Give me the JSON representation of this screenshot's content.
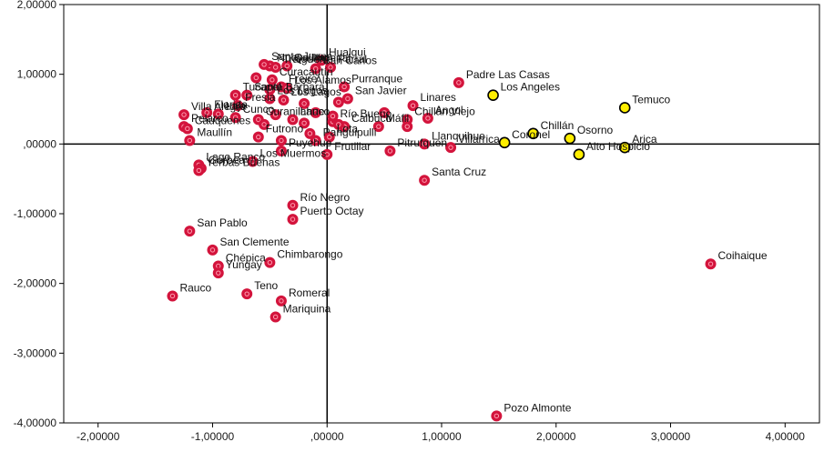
{
  "colors": {
    "red_fill": "#d3143c",
    "red_ring": "#ff9db0",
    "yellow_fill": "#ffee00",
    "yellow_stroke": "#000000",
    "axis": "#000000",
    "frame": "#000000"
  },
  "chart_data": {
    "type": "scatter",
    "xlim": [
      -2.3,
      4.3
    ],
    "ylim": [
      -4.0,
      2.0
    ],
    "x_ticks": [
      {
        "v": -2,
        "label": "-2,00000"
      },
      {
        "v": -1,
        "label": "-1,00000"
      },
      {
        "v": 0,
        "label": ",00000"
      },
      {
        "v": 1,
        "label": "1,00000"
      },
      {
        "v": 2,
        "label": "2,00000"
      },
      {
        "v": 3,
        "label": "3,00000"
      },
      {
        "v": 4,
        "label": "4,00000"
      }
    ],
    "y_ticks": [
      {
        "v": 2,
        "label": "2,00000"
      },
      {
        "v": 1,
        "label": "1,00000"
      },
      {
        "v": 0,
        "label": ",00000"
      },
      {
        "v": -1,
        "label": "-1,00000"
      },
      {
        "v": -2,
        "label": "-2,00000"
      },
      {
        "v": -3,
        "label": "-3,00000"
      },
      {
        "v": -4,
        "label": "-4,00000"
      }
    ],
    "series": [
      {
        "marker": "red",
        "points": [
          {
            "x": -0.5,
            "y": 1.12,
            "label": "Nueva Imperial"
          },
          {
            "x": -0.45,
            "y": 1.1,
            "label": "Traiguén"
          },
          {
            "x": -0.55,
            "y": 1.14,
            "label": "Santa Juana"
          },
          {
            "x": -0.35,
            "y": 1.12,
            "label": "Quillón"
          },
          {
            "x": -0.1,
            "y": 1.08,
            "label": "San Carlos"
          },
          {
            "x": -0.05,
            "y": 1.2,
            "label": "Hualqui"
          },
          {
            "x": 0.03,
            "y": 1.1,
            "label": "Parral"
          },
          {
            "x": -0.4,
            "y": 0.82,
            "label": "Freire"
          },
          {
            "x": -0.35,
            "y": 0.8,
            "label": "Los Álamos"
          },
          {
            "x": -0.48,
            "y": 0.92,
            "label": "Curacautín"
          },
          {
            "x": 0.15,
            "y": 0.82,
            "label": "Purranque"
          },
          {
            "x": 0.18,
            "y": 0.65,
            "label": "San Javier"
          },
          {
            "x": -1.25,
            "y": 0.42,
            "label": "Villa Alegre"
          },
          {
            "x": -0.8,
            "y": 0.7,
            "label": "Tucapel"
          },
          {
            "x": -0.7,
            "y": 0.7,
            "label": "Santa Bárbara"
          },
          {
            "x": -0.5,
            "y": 0.65,
            "label": "Los Lagos"
          },
          {
            "x": -1.05,
            "y": 0.45,
            "label": "Florida"
          },
          {
            "x": -0.95,
            "y": 0.43,
            "label": "Laja"
          },
          {
            "x": -0.78,
            "y": 0.55,
            "label": "Fresia"
          },
          {
            "x": -0.38,
            "y": 0.63,
            "label": "Los Lagos"
          },
          {
            "x": 1.15,
            "y": 0.88,
            "label": "Padre Las Casas"
          },
          {
            "x": 0.75,
            "y": 0.55,
            "label": "Linares"
          },
          {
            "x": 0.88,
            "y": 0.37,
            "label": "Angol"
          },
          {
            "x": 0.05,
            "y": 0.32,
            "label": "Río Bueno"
          },
          {
            "x": -1.25,
            "y": 0.25,
            "label": "Pelarco"
          },
          {
            "x": -1.22,
            "y": 0.22,
            "label": "Cauquenes"
          },
          {
            "x": -0.8,
            "y": 0.38,
            "label": "Cunco"
          },
          {
            "x": -1.2,
            "y": 0.05,
            "label": "Maullín"
          },
          {
            "x": -0.6,
            "y": 0.35,
            "label": "Curanilahue"
          },
          {
            "x": -0.3,
            "y": 0.35,
            "label": "Lanco"
          },
          {
            "x": -0.6,
            "y": 0.1,
            "label": "Futrono"
          },
          {
            "x": 0.02,
            "y": 0.1,
            "label": "Lota"
          },
          {
            "x": 0.15,
            "y": 0.25,
            "label": "Calbuco"
          },
          {
            "x": 0.45,
            "y": 0.25,
            "label": "Máfil"
          },
          {
            "x": 0.55,
            "y": -0.1,
            "label": "Pitrufquén"
          },
          {
            "x": 0.7,
            "y": 0.35,
            "label": "Chillán Viejo"
          },
          {
            "x": 0.85,
            "y": 0.0,
            "label": "Llanquihue"
          },
          {
            "x": 1.08,
            "y": -0.05,
            "label": "Villarrica"
          },
          {
            "x": -0.4,
            "y": -0.1,
            "label": "Puyehue"
          },
          {
            "x": -0.1,
            "y": 0.05,
            "label": "Panguipulli"
          },
          {
            "x": -0.65,
            "y": -0.25,
            "label": "Los Muermos"
          },
          {
            "x": 0.0,
            "y": -0.15,
            "label": "Frutillar"
          },
          {
            "x": -1.12,
            "y": -0.3,
            "label": "Lago Ranco"
          },
          {
            "x": -1.1,
            "y": -0.35,
            "label": "Gorbea"
          },
          {
            "x": -1.12,
            "y": -0.38,
            "label": "Yerbas Buenas"
          },
          {
            "x": 0.85,
            "y": -0.52,
            "label": "Santa Cruz"
          },
          {
            "x": -0.3,
            "y": -0.88,
            "label": "Río Negro"
          },
          {
            "x": -0.3,
            "y": -1.08,
            "label": "Puerto Octay"
          },
          {
            "x": -1.2,
            "y": -1.25,
            "label": "San Pablo"
          },
          {
            "x": -1.0,
            "y": -1.52,
            "label": "San Clemente"
          },
          {
            "x": -0.95,
            "y": -1.75,
            "label": "Chépica"
          },
          {
            "x": -0.5,
            "y": -1.7,
            "label": "Chimbarongo"
          },
          {
            "x": -0.95,
            "y": -1.85,
            "label": "Yungay"
          },
          {
            "x": -0.7,
            "y": -2.15,
            "label": "Teno"
          },
          {
            "x": -1.35,
            "y": -2.18,
            "label": "Rauco"
          },
          {
            "x": -0.4,
            "y": -2.25,
            "label": "Romeral"
          },
          {
            "x": -0.45,
            "y": -2.48,
            "label": "Mariquina"
          },
          {
            "x": 3.35,
            "y": -1.72,
            "label": "Coihaique"
          },
          {
            "x": 1.48,
            "y": -3.9,
            "label": "Pozo Almonte"
          },
          {
            "x": -0.5,
            "y": 0.78,
            "label": ""
          },
          {
            "x": -0.2,
            "y": 0.58,
            "label": ""
          },
          {
            "x": -0.1,
            "y": 0.45,
            "label": ""
          },
          {
            "x": -0.55,
            "y": 0.28,
            "label": ""
          },
          {
            "x": -0.45,
            "y": 0.42,
            "label": ""
          },
          {
            "x": -0.2,
            "y": 0.3,
            "label": ""
          },
          {
            "x": -0.15,
            "y": 0.15,
            "label": ""
          },
          {
            "x": 0.05,
            "y": 0.4,
            "label": ""
          },
          {
            "x": 0.1,
            "y": 0.28,
            "label": ""
          },
          {
            "x": 0.5,
            "y": 0.45,
            "label": ""
          },
          {
            "x": 0.7,
            "y": 0.25,
            "label": ""
          },
          {
            "x": -0.4,
            "y": 0.05,
            "label": ""
          },
          {
            "x": -0.62,
            "y": 0.95,
            "label": ""
          },
          {
            "x": 0.1,
            "y": 0.6,
            "label": ""
          }
        ]
      },
      {
        "marker": "yellow",
        "points": [
          {
            "x": 1.45,
            "y": 0.7,
            "label": "Los Angeles"
          },
          {
            "x": 2.6,
            "y": 0.52,
            "label": "Temuco"
          },
          {
            "x": 1.8,
            "y": 0.15,
            "label": "Chillán"
          },
          {
            "x": 2.12,
            "y": 0.08,
            "label": "Osorno"
          },
          {
            "x": 2.6,
            "y": -0.05,
            "label": "Arica"
          },
          {
            "x": 1.55,
            "y": 0.02,
            "label": "Coronel"
          },
          {
            "x": 2.2,
            "y": -0.15,
            "label": "Alto Hospicio"
          }
        ]
      }
    ]
  }
}
